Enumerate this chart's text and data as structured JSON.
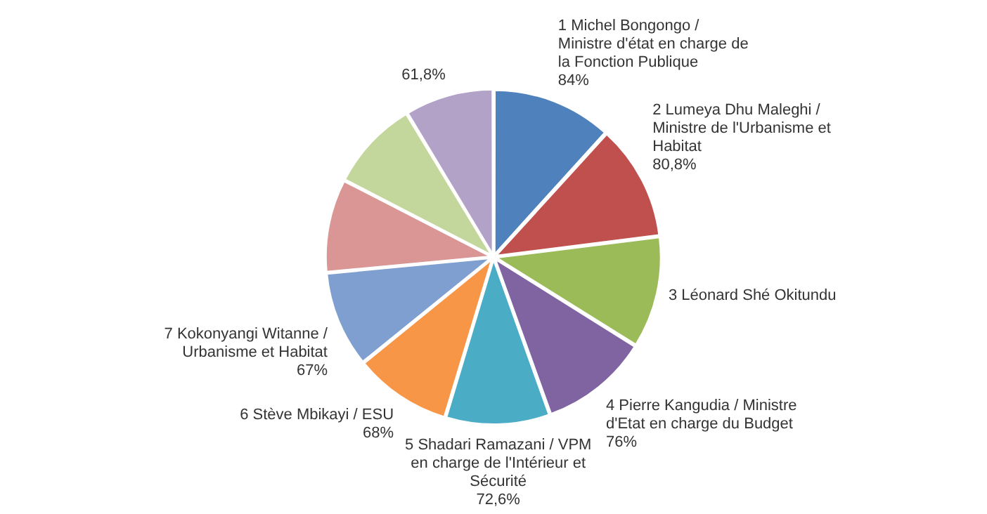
{
  "chart_data": {
    "type": "pie",
    "categories": [
      "1 Michel Bongongo / Ministre d'état en charge de la Fonction Publique",
      "2 Lumeya Dhu Maleghi / Ministre de l'Urbanisme et Habitat",
      "3 Léonard Shé Okitundu",
      "4 Pierre Kangudia / Ministre d'Etat en charge du Budget",
      "5 Shadari Ramazani / VPM en charge de l'Intérieur et Sécurité",
      "6 Stève Mbikayi / ESU",
      "7 Kokonyangi Witanne / Urbanisme et Habitat",
      null,
      null,
      null
    ],
    "values": [
      84,
      80.8,
      78,
      76,
      72.6,
      68,
      67,
      65,
      63,
      61.8
    ],
    "value_labels": [
      "84%",
      "80,8%",
      null,
      "76%",
      "72,6%",
      "68%",
      "67%",
      null,
      null,
      "61,8%"
    ],
    "colors": [
      "#4f81bd",
      "#c0504d",
      "#9bbb59",
      "#8064a2",
      "#4bacc6",
      "#f79646",
      "#7f9fd0",
      "#d99694",
      "#c3d69b",
      "#b3a2c7"
    ],
    "legend": false
  }
}
